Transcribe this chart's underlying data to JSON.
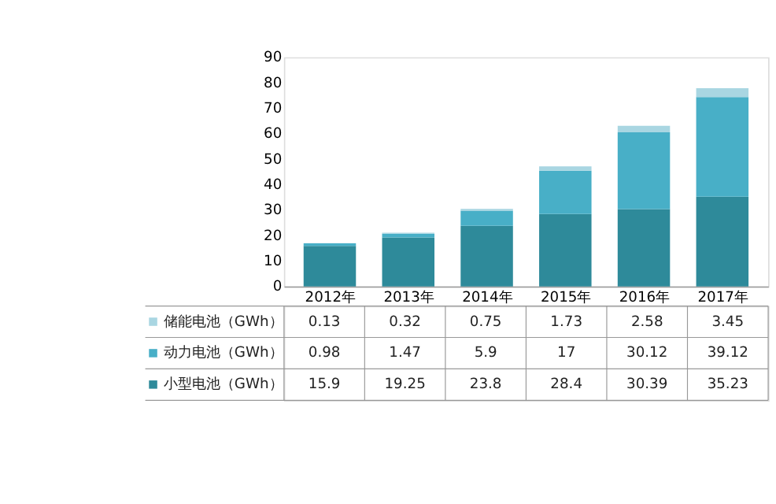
{
  "chart_data": {
    "type": "bar",
    "stacked": true,
    "categories": [
      "2012年",
      "2013年",
      "2014年",
      "2015年",
      "2016年",
      "2017年"
    ],
    "series": [
      {
        "name": "小型电池（GWh）",
        "color": "#2e8a9a",
        "values": [
          15.9,
          19.25,
          23.8,
          28.4,
          30.39,
          35.23
        ]
      },
      {
        "name": "动力电池（GWh）",
        "color": "#48afc7",
        "values": [
          0.98,
          1.47,
          5.9,
          17,
          30.12,
          39.12
        ]
      },
      {
        "name": "储能电池（GWh）",
        "color": "#a9d6e2",
        "values": [
          0.13,
          0.32,
          0.75,
          1.73,
          2.58,
          3.45
        ]
      }
    ],
    "ylim": [
      0,
      90
    ],
    "yticks": [
      0,
      10,
      20,
      30,
      40,
      50,
      60,
      70,
      80,
      90
    ],
    "grid": false,
    "data_labels": true,
    "legend": "bottom"
  }
}
